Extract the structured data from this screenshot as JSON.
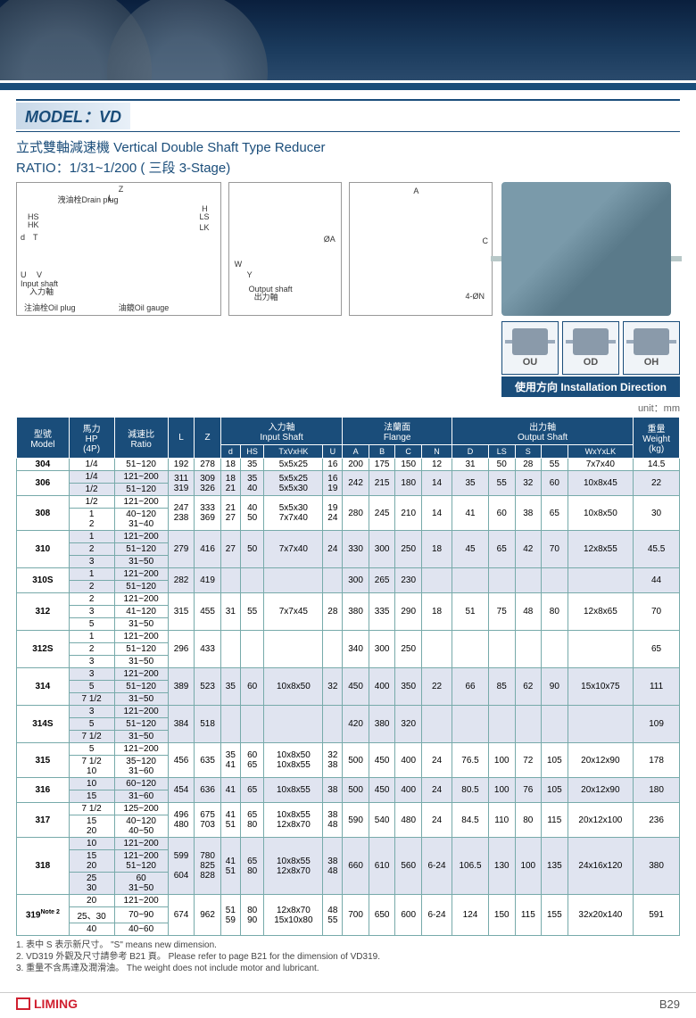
{
  "header": {
    "model_label": "MODEL：VD",
    "subtitle": "立式雙軸減速機 Vertical Double Shaft Type Reducer",
    "ratio": "RATIO：1/31~1/200 ( 三段 3-Stage)"
  },
  "diagram_labels": {
    "drain_plug": "洩油栓Drain plug",
    "input_shaft": "Input shaft",
    "input_shaft_cn": "入力軸",
    "oil_plug": "注油栓Oil plug",
    "oil_gauge": "油鏡Oil gauge",
    "output_shaft": "Output shaft",
    "output_shaft_cn": "出力軸",
    "z": "Z",
    "l": "L",
    "h": "H",
    "ls": "LS",
    "lk": "LK",
    "hs": "HS",
    "hk": "HK",
    "d_small": "d",
    "t": "T",
    "u_small": "U",
    "v": "V",
    "w": "W",
    "y": "Y",
    "a": "A",
    "c": "C",
    "phi_a": "ØA",
    "four_phi_n": "4-ØN"
  },
  "install": {
    "ou": "OU",
    "od": "OD",
    "oh": "OH",
    "label": "使用方向 Installation Direction"
  },
  "unit": "unit：mm",
  "columns": {
    "model": "型號\nModel",
    "hp": "馬力\nHP\n(4P)",
    "ratio": "減速比\nRatio",
    "l": "L",
    "z": "Z",
    "input_shaft": "入力軸\nInput Shaft",
    "flange": "法蘭面\nFlange",
    "output_shaft": "出力軸\nOutput Shaft",
    "weight": "重量\nWeight\n(kg)",
    "d": "d",
    "hs": "HS",
    "txvxhk": "TxVxHK",
    "u": "U",
    "a": "A",
    "b": "B",
    "c": "C",
    "n": "N",
    "dcap": "D",
    "ls": "LS",
    "s": "S",
    "h": "H",
    "wxyxlk": "WxYxLK"
  },
  "rows": [
    {
      "shade": false,
      "model": "304",
      "hp": [
        "1/4"
      ],
      "ratio": [
        "51~120"
      ],
      "l": "192",
      "z": "278",
      "d": "18",
      "hs": "35",
      "tv": "5x5x25",
      "u": "16",
      "a": "200",
      "b": "175",
      "c": "150",
      "n": "12",
      "dcap": "31",
      "ls": "50",
      "s": "28",
      "h": "55",
      "wy": "7x7x40",
      "wt": "14.5"
    },
    {
      "shade": true,
      "model": "306",
      "hp": [
        "1/4",
        "1/2"
      ],
      "ratio": [
        "121~200",
        "51~120"
      ],
      "l": "311\n319",
      "z": "309\n326",
      "d": "18\n21",
      "hs": "35\n40",
      "tv": "5x5x25\n5x5x30",
      "u": "16\n19",
      "a": "242",
      "b": "215",
      "c": "180",
      "n": "14",
      "dcap": "35",
      "ls": "55",
      "s": "32",
      "h": "60",
      "wy": "10x8x45",
      "wt": "22"
    },
    {
      "shade": false,
      "model": "308",
      "hp": [
        "1/2",
        "1\n2"
      ],
      "ratio": [
        "121~200",
        "40~120\n31~40"
      ],
      "l": "247\n238",
      "z": "333\n369",
      "d": "21\n27",
      "hs": "40\n50",
      "tv": "5x5x30\n7x7x40",
      "u": "19\n24",
      "a": "280",
      "b": "245",
      "c": "210",
      "n": "14",
      "dcap": "41",
      "ls": "60",
      "s": "38",
      "h": "65",
      "wy": "10x8x50",
      "wt": "30"
    },
    {
      "shade": true,
      "model": "310",
      "hp": [
        "1",
        "2",
        "3"
      ],
      "ratio": [
        "121~200",
        "51~120",
        "31~50"
      ],
      "l": "279",
      "z": "416",
      "d": "27",
      "hs": "50",
      "tv": "7x7x40",
      "u": "24",
      "a": "330",
      "b": "300",
      "c": "250",
      "n": "18",
      "dcap": "45",
      "ls": "65",
      "s": "42",
      "h": "70",
      "wy": "12x8x55",
      "wt": "45.5"
    },
    {
      "shade": true,
      "model": "310S",
      "hp": [
        "1",
        "2"
      ],
      "ratio": [
        "121~200",
        "51~120"
      ],
      "l": "282",
      "z": "419",
      "d": "",
      "hs": "",
      "tv": "",
      "u": "",
      "a": "300",
      "b": "265",
      "c": "230",
      "n": "",
      "dcap": "",
      "ls": "",
      "s": "",
      "h": "",
      "wy": "",
      "wt": "44"
    },
    {
      "shade": false,
      "model": "312",
      "hp": [
        "2",
        "3",
        "5"
      ],
      "ratio": [
        "121~200",
        "41~120",
        "31~50"
      ],
      "l": "315",
      "z": "455",
      "d": "31",
      "hs": "55",
      "tv": "7x7x45",
      "u": "28",
      "a": "380",
      "b": "335",
      "c": "290",
      "n": "18",
      "dcap": "51",
      "ls": "75",
      "s": "48",
      "h": "80",
      "wy": "12x8x65",
      "wt": "70"
    },
    {
      "shade": false,
      "model": "312S",
      "hp": [
        "1",
        "2",
        "3"
      ],
      "ratio": [
        "121~200",
        "51~120",
        "31~50"
      ],
      "l": "296",
      "z": "433",
      "d": "",
      "hs": "",
      "tv": "",
      "u": "",
      "a": "340",
      "b": "300",
      "c": "250",
      "n": "",
      "dcap": "",
      "ls": "",
      "s": "",
      "h": "",
      "wy": "",
      "wt": "65"
    },
    {
      "shade": true,
      "model": "314",
      "hp": [
        "3",
        "5",
        "7 1/2"
      ],
      "ratio": [
        "121~200",
        "51~120",
        "31~50"
      ],
      "l": "389",
      "z": "523",
      "d": "35",
      "hs": "60",
      "tv": "10x8x50",
      "u": "32",
      "a": "450",
      "b": "400",
      "c": "350",
      "n": "22",
      "dcap": "66",
      "ls": "85",
      "s": "62",
      "h": "90",
      "wy": "15x10x75",
      "wt": "111"
    },
    {
      "shade": true,
      "model": "314S",
      "hp": [
        "3",
        "5",
        "7 1/2"
      ],
      "ratio": [
        "121~200",
        "51~120",
        "31~50"
      ],
      "l": "384",
      "z": "518",
      "d": "",
      "hs": "",
      "tv": "",
      "u": "",
      "a": "420",
      "b": "380",
      "c": "320",
      "n": "",
      "dcap": "",
      "ls": "",
      "s": "",
      "h": "",
      "wy": "",
      "wt": "109"
    },
    {
      "shade": false,
      "model": "315",
      "hp": [
        "5",
        "7 1/2\n10"
      ],
      "ratio": [
        "121~200",
        "35~120\n31~60"
      ],
      "l": "456",
      "z": "635",
      "d": "35\n41",
      "hs": "60\n65",
      "tv": "10x8x50\n10x8x55",
      "u": "32\n38",
      "a": "500",
      "b": "450",
      "c": "400",
      "n": "24",
      "dcap": "76.5",
      "ls": "100",
      "s": "72",
      "h": "105",
      "wy": "20x12x90",
      "wt": "178"
    },
    {
      "shade": true,
      "model": "316",
      "hp": [
        "10",
        "15"
      ],
      "ratio": [
        "60~120",
        "31~60"
      ],
      "l": "454",
      "z": "636",
      "d": "41",
      "hs": "65",
      "tv": "10x8x55",
      "u": "38",
      "a": "500",
      "b": "450",
      "c": "400",
      "n": "24",
      "dcap": "80.5",
      "ls": "100",
      "s": "76",
      "h": "105",
      "wy": "20x12x90",
      "wt": "180"
    },
    {
      "shade": false,
      "model": "317",
      "hp": [
        "7 1/2",
        "15\n20"
      ],
      "ratio": [
        "125~200",
        "40~120\n40~50"
      ],
      "l": "496\n480",
      "z": "675\n703",
      "d": "41\n51",
      "hs": "65\n80",
      "tv": "10x8x55\n12x8x70",
      "u": "38\n48",
      "a": "590",
      "b": "540",
      "c": "480",
      "n": "24",
      "dcap": "84.5",
      "ls": "110",
      "s": "80",
      "h": "115",
      "wy": "20x12x100",
      "wt": "236"
    },
    {
      "shade": true,
      "model": "318",
      "hp": [
        "10",
        "15\n20",
        "25\n30"
      ],
      "ratio": [
        "121~200",
        "121~200\n51~120",
        "60\n31~50"
      ],
      "l": "599\n\n604",
      "z": "780\n825\n828",
      "d": "41\n51",
      "hs": "65\n80",
      "tv": "10x8x55\n12x8x70",
      "u": "38\n48",
      "a": "660",
      "b": "610",
      "c": "560",
      "n": "6-24",
      "dcap": "106.5",
      "ls": "130",
      "s": "100",
      "h": "135",
      "wy": "24x16x120",
      "wt": "380"
    },
    {
      "shade": false,
      "model": "319",
      "model_note": "Note 2",
      "hp": [
        "20",
        "25、30",
        "40"
      ],
      "ratio": [
        "121~200",
        "70~90",
        "40~60"
      ],
      "l": "674",
      "z": "962",
      "d": "51\n59",
      "hs": "80\n90",
      "tv": "12x8x70\n15x10x80",
      "u": "48\n55",
      "a": "700",
      "b": "650",
      "c": "600",
      "n": "6-24",
      "dcap": "124",
      "ls": "150",
      "s": "115",
      "h": "155",
      "wy": "32x20x140",
      "wt": "591"
    }
  ],
  "notes": [
    "1. 表中 S 表示新尺寸。 \"S\" means new dimension.",
    "2. VD319 外觀及尺寸請參考 B21 頁。 Please refer to page B21 for the dimension of VD319.",
    "3. 重量不含馬達及潤滑油。 The weight does not include motor and lubricant."
  ],
  "footer": {
    "brand": "LIMING",
    "page": "B29"
  },
  "colors": {
    "primary": "#1a4d7a",
    "shade": "#e0e4f0",
    "accent": "#d02030"
  }
}
